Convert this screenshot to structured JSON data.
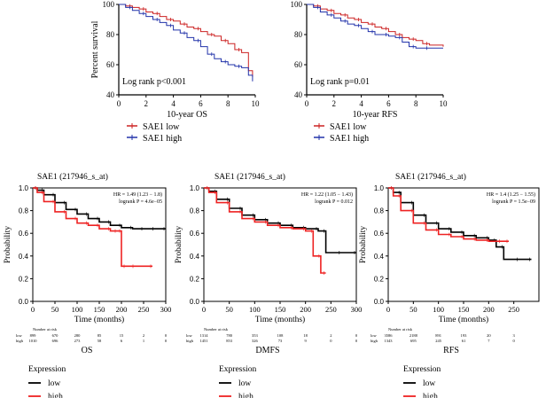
{
  "chart_data": [
    {
      "type": "line",
      "subtype": "kaplan-meier",
      "panel": "top-left",
      "xlabel": "10-year OS",
      "ylabel": "Percent survival",
      "xlim": [
        0,
        10
      ],
      "ylim": [
        40,
        100
      ],
      "xticks": [
        0,
        2,
        4,
        6,
        8,
        10
      ],
      "yticks": [
        40,
        60,
        80,
        100
      ],
      "annotation": "Log rank p<0.001",
      "legend": [
        {
          "label": "SAE1 low",
          "color": "#cc2222"
        },
        {
          "label": "SAE1 high",
          "color": "#2233aa"
        }
      ],
      "series": [
        {
          "name": "SAE1 low",
          "color": "#cc2222",
          "x": [
            0,
            0.5,
            1,
            1.5,
            2,
            2.5,
            3,
            3.5,
            4,
            4.5,
            5,
            5.5,
            6,
            6.5,
            7,
            7.5,
            8,
            8.5,
            9,
            9.5,
            9.8
          ],
          "y": [
            100,
            99,
            98,
            97,
            95,
            94,
            92,
            90,
            89,
            87,
            85,
            84,
            82,
            80,
            79,
            76,
            74,
            70,
            68,
            56,
            52
          ]
        },
        {
          "name": "SAE1 high",
          "color": "#2233aa",
          "x": [
            0,
            0.5,
            1,
            1.5,
            2,
            2.5,
            3,
            3.5,
            4,
            4.5,
            5,
            5.5,
            6,
            6.5,
            7,
            7.5,
            8,
            8.5,
            9,
            9.5,
            9.8
          ],
          "y": [
            100,
            98,
            96,
            94,
            92,
            90,
            88,
            86,
            83,
            81,
            78,
            76,
            72,
            67,
            64,
            62,
            60,
            59,
            58,
            53,
            49
          ]
        }
      ]
    },
    {
      "type": "line",
      "subtype": "kaplan-meier",
      "panel": "top-right",
      "xlabel": "10-year RFS",
      "ylabel": "",
      "xlim": [
        0,
        10
      ],
      "ylim": [
        40,
        100
      ],
      "xticks": [
        0,
        2,
        4,
        6,
        8,
        10
      ],
      "yticks": [
        40,
        60,
        80,
        100
      ],
      "annotation": "Log rank p=0.01",
      "legend": [
        {
          "label": "SAE1 low",
          "color": "#cc2222"
        },
        {
          "label": "SAE1 high",
          "color": "#2233aa"
        }
      ],
      "series": [
        {
          "name": "SAE1 low",
          "color": "#cc2222",
          "x": [
            0,
            0.5,
            1,
            1.5,
            2,
            2.5,
            3,
            3.5,
            4,
            4.5,
            5,
            5.5,
            6,
            6.5,
            7,
            7.5,
            8,
            8.5,
            9,
            9.5,
            10
          ],
          "y": [
            100,
            99,
            97,
            96,
            94,
            93,
            91,
            90,
            88,
            87,
            85,
            84,
            82,
            80,
            78,
            77,
            76,
            74,
            73,
            73,
            72
          ]
        },
        {
          "name": "SAE1 high",
          "color": "#2233aa",
          "x": [
            0,
            0.5,
            1,
            1.5,
            2,
            2.5,
            3,
            3.5,
            4,
            4.5,
            5,
            5.5,
            6,
            6.5,
            7,
            7.5,
            8,
            8.5,
            9,
            9.5,
            10
          ],
          "y": [
            100,
            98,
            95,
            93,
            91,
            89,
            87,
            86,
            84,
            82,
            80,
            80,
            79,
            78,
            75,
            72,
            71,
            71,
            71,
            71,
            71
          ]
        }
      ]
    },
    {
      "type": "line",
      "subtype": "kaplan-meier",
      "panel": "bottom-left",
      "title": "SAE1 (217946_s_at)",
      "xlabel": "Time (months)",
      "ylabel": "Probability",
      "caption": "OS",
      "xlim": [
        0,
        300
      ],
      "ylim": [
        0,
        1
      ],
      "xticks": [
        0,
        50,
        100,
        150,
        200,
        250,
        300
      ],
      "yticks": [
        0.0,
        0.2,
        0.4,
        0.6,
        0.8,
        1.0
      ],
      "stats": [
        "HR = 1.49 (1.23 − 1.8)",
        "logrank P = 4.6e−05"
      ],
      "risk_table": {
        "header": "Number at risk",
        "rows": [
          {
            "label": "low",
            "values": [
              "899",
              "670",
              "280",
              "85",
              "15",
              "2",
              "0"
            ]
          },
          {
            "label": "high",
            "values": [
              "1010",
              "696",
              "273",
              "58",
              "6",
              "1",
              "0"
            ]
          }
        ]
      },
      "legend_title": "Expression",
      "legend": [
        {
          "label": "low",
          "color": "#000000"
        },
        {
          "label": "high",
          "color": "#ee2222"
        }
      ],
      "series": [
        {
          "name": "low",
          "color": "#000000",
          "x": [
            0,
            10,
            25,
            50,
            75,
            100,
            125,
            150,
            175,
            200,
            225,
            250,
            275,
            300
          ],
          "y": [
            1.0,
            0.98,
            0.94,
            0.87,
            0.81,
            0.77,
            0.73,
            0.7,
            0.67,
            0.65,
            0.64,
            0.64,
            0.64,
            0.64
          ]
        },
        {
          "name": "high",
          "color": "#ee2222",
          "x": [
            0,
            10,
            25,
            50,
            75,
            100,
            125,
            150,
            175,
            190,
            200,
            210,
            230,
            270
          ],
          "y": [
            1.0,
            0.96,
            0.88,
            0.79,
            0.73,
            0.69,
            0.67,
            0.64,
            0.62,
            0.62,
            0.31,
            0.31,
            0.31,
            0.31
          ]
        }
      ]
    },
    {
      "type": "line",
      "subtype": "kaplan-meier",
      "panel": "bottom-middle",
      "title": "SAE1 (217946_s_at)",
      "xlabel": "Time (months)",
      "ylabel": "Probability",
      "caption": "DMFS",
      "xlim": [
        0,
        300
      ],
      "ylim": [
        0,
        1
      ],
      "xticks": [
        0,
        50,
        100,
        150,
        200,
        250,
        300
      ],
      "yticks": [
        0.0,
        0.2,
        0.4,
        0.6,
        0.8,
        1.0
      ],
      "stats": [
        "HR = 1.22 (1.05 − 1.43)",
        "logrank P = 0.012"
      ],
      "risk_table": {
        "header": "Number at risk",
        "rows": [
          {
            "label": "low",
            "values": [
              "1314",
              "780",
              "353",
              "108",
              "18",
              "2",
              "0"
            ]
          },
          {
            "label": "high",
            "values": [
              "1451",
              "853",
              "326",
              "73",
              "9",
              "0",
              "0"
            ]
          }
        ]
      },
      "legend_title": "Expression",
      "legend": [
        {
          "label": "low",
          "color": "#000000"
        },
        {
          "label": "high",
          "color": "#ee2222"
        }
      ],
      "series": [
        {
          "name": "low",
          "color": "#000000",
          "x": [
            0,
            10,
            25,
            50,
            75,
            100,
            125,
            150,
            175,
            200,
            225,
            240,
            270,
            300
          ],
          "y": [
            1.0,
            0.97,
            0.9,
            0.82,
            0.76,
            0.72,
            0.69,
            0.67,
            0.65,
            0.64,
            0.62,
            0.43,
            0.43,
            0.43
          ]
        },
        {
          "name": "high",
          "color": "#ee2222",
          "x": [
            0,
            10,
            25,
            50,
            75,
            100,
            125,
            150,
            175,
            200,
            215,
            230,
            240
          ],
          "y": [
            1.0,
            0.96,
            0.87,
            0.79,
            0.73,
            0.7,
            0.67,
            0.65,
            0.64,
            0.62,
            0.4,
            0.25,
            0.25
          ]
        }
      ]
    },
    {
      "type": "line",
      "subtype": "kaplan-meier",
      "panel": "bottom-right",
      "title": "SAE1 (217946_s_at)",
      "xlabel": "Time (months)",
      "ylabel": "Probability",
      "caption": "RFS",
      "xlim": [
        0,
        300
      ],
      "ylim": [
        0,
        1
      ],
      "xticks": [
        0,
        50,
        100,
        150,
        200,
        250
      ],
      "yticks": [
        0.0,
        0.2,
        0.4,
        0.6,
        0.8,
        1.0
      ],
      "stats": [
        "HR = 1.4 (1.25 − 1.55)",
        "logrank P = 1.5e−09"
      ],
      "risk_table": {
        "header": "Number at risk",
        "rows": [
          {
            "label": "low",
            "values": [
              "3586",
              "2188",
              "891",
              "193",
              "20",
              "3"
            ]
          },
          {
            "label": "high",
            "values": [
              "1343",
              "695",
              "245",
              "61",
              "7",
              "0"
            ]
          }
        ]
      },
      "legend_title": "Expression",
      "legend": [
        {
          "label": "low",
          "color": "#000000"
        },
        {
          "label": "high",
          "color": "#ee2222"
        }
      ],
      "series": [
        {
          "name": "low",
          "color": "#000000",
          "x": [
            0,
            10,
            25,
            50,
            75,
            100,
            125,
            150,
            175,
            200,
            215,
            230,
            260,
            285
          ],
          "y": [
            1.0,
            0.96,
            0.87,
            0.76,
            0.69,
            0.64,
            0.61,
            0.58,
            0.56,
            0.54,
            0.48,
            0.37,
            0.37,
            0.37
          ]
        },
        {
          "name": "high",
          "color": "#ee2222",
          "x": [
            0,
            10,
            25,
            50,
            75,
            100,
            125,
            150,
            175,
            200,
            225,
            240
          ],
          "y": [
            1.0,
            0.93,
            0.8,
            0.69,
            0.63,
            0.59,
            0.57,
            0.55,
            0.54,
            0.53,
            0.53,
            0.53
          ]
        }
      ]
    }
  ]
}
